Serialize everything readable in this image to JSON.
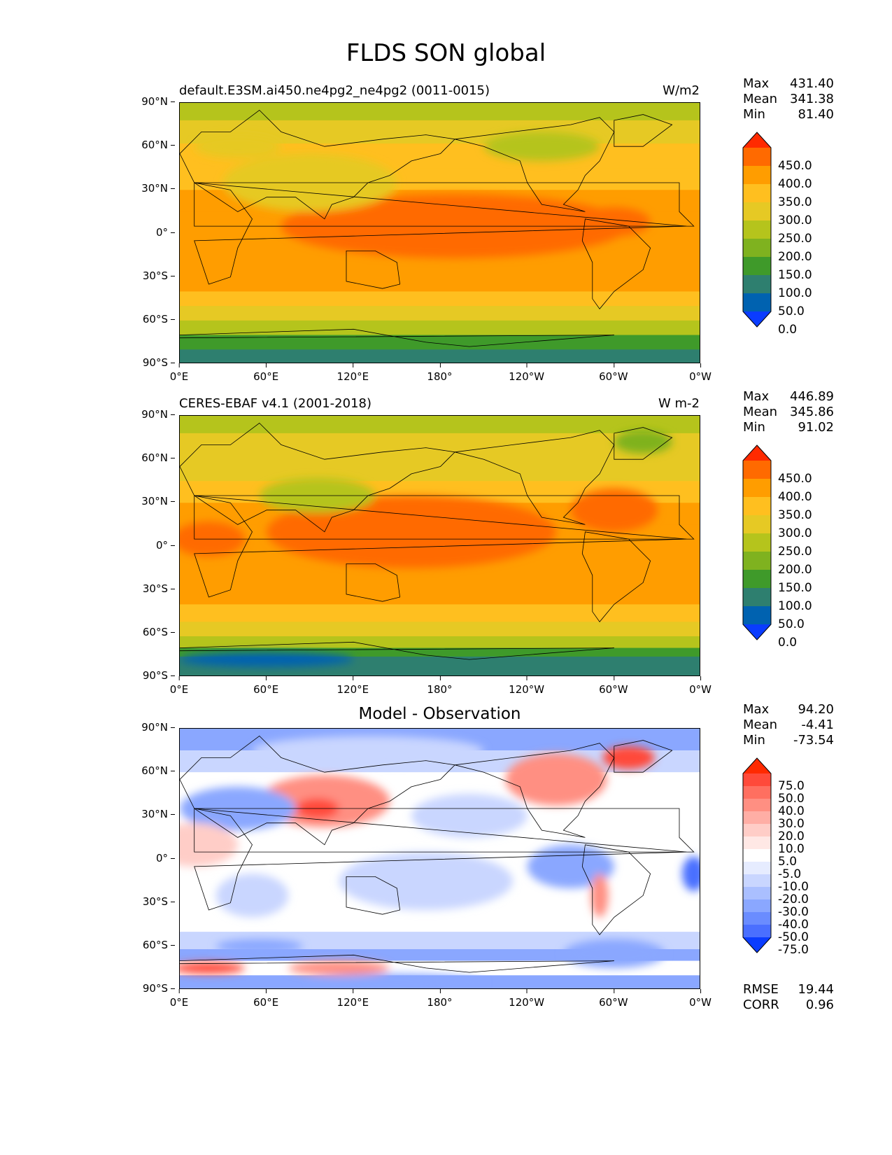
{
  "figure": {
    "title": "FLDS SON global"
  },
  "axes": {
    "lat_labels": [
      "90°N",
      "60°N",
      "30°N",
      "0°",
      "30°S",
      "60°S",
      "90°S"
    ],
    "lon_labels": [
      "0°E",
      "60°E",
      "120°E",
      "180°",
      "120°W",
      "60°W",
      "0°W"
    ]
  },
  "panels": [
    {
      "title_left": "default.E3SM.ai450.ne4pg2_ne4pg2 (0011-0015)",
      "title_right": "W/m2",
      "title_center": "",
      "stats": [
        {
          "label": "Max",
          "value": "431.40"
        },
        {
          "label": "Mean",
          "value": "341.38"
        },
        {
          "label": "Min",
          "value": "81.40"
        }
      ],
      "colorbar": {
        "labels": [
          "450.0",
          "400.0",
          "350.0",
          "300.0",
          "250.0",
          "200.0",
          "150.0",
          "100.0",
          "50.0",
          "0.0"
        ],
        "colors": [
          "#ff2a00",
          "#ff6a00",
          "#ff9d00",
          "#ffbf1f",
          "#e6c924",
          "#b5c41c",
          "#7fb21f",
          "#3f9a2a",
          "#2e7f6f",
          "#0062b0",
          "#0a3cff"
        ]
      },
      "extra": []
    },
    {
      "title_left": "CERES-EBAF v4.1 (2001-2018)",
      "title_right": "W m-2",
      "title_center": "",
      "stats": [
        {
          "label": "Max",
          "value": "446.89"
        },
        {
          "label": "Mean",
          "value": "345.86"
        },
        {
          "label": "Min",
          "value": "91.02"
        }
      ],
      "colorbar": {
        "labels": [
          "450.0",
          "400.0",
          "350.0",
          "300.0",
          "250.0",
          "200.0",
          "150.0",
          "100.0",
          "50.0",
          "0.0"
        ],
        "colors": [
          "#ff2a00",
          "#ff6a00",
          "#ff9d00",
          "#ffbf1f",
          "#e6c924",
          "#b5c41c",
          "#7fb21f",
          "#3f9a2a",
          "#2e7f6f",
          "#0062b0",
          "#0a3cff"
        ]
      },
      "extra": []
    },
    {
      "title_left": "",
      "title_right": "",
      "title_center": "Model - Observation",
      "stats": [
        {
          "label": "Max",
          "value": "94.20"
        },
        {
          "label": "Mean",
          "value": "-4.41"
        },
        {
          "label": "Min",
          "value": "-73.54"
        }
      ],
      "colorbar": {
        "labels": [
          "75.0",
          "50.0",
          "40.0",
          "30.0",
          "20.0",
          "10.0",
          "5.0",
          "-5.0",
          "-10.0",
          "-20.0",
          "-30.0",
          "-40.0",
          "-50.0",
          "-75.0"
        ],
        "colors": [
          "#ff2a00",
          "#ff4a3a",
          "#ff6f60",
          "#ff8f82",
          "#ffaea5",
          "#ffcdc7",
          "#ffe8e5",
          "#ffffff",
          "#e6ecff",
          "#c9d6ff",
          "#aabfff",
          "#8aa7ff",
          "#6a8cff",
          "#4a6fff",
          "#0a3cff"
        ]
      },
      "extra": [
        {
          "label": "RMSE",
          "value": "19.44"
        },
        {
          "label": "CORR",
          "value": "0.96"
        }
      ]
    }
  ]
}
